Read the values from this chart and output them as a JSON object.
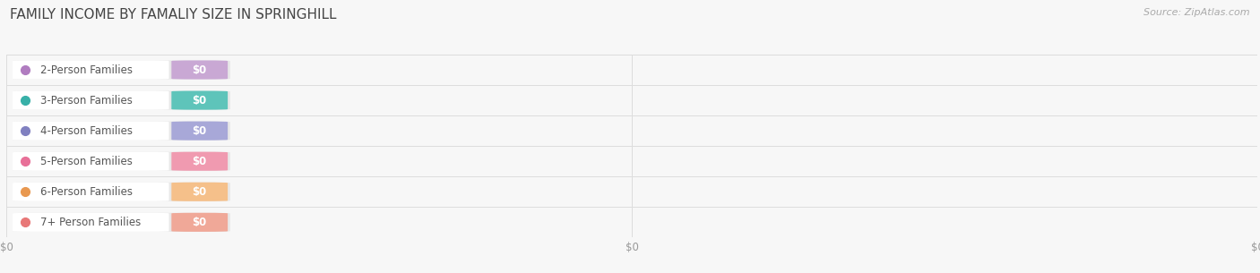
{
  "title": "FAMILY INCOME BY FAMALIY SIZE IN SPRINGHILL",
  "source": "Source: ZipAtlas.com",
  "categories": [
    "2-Person Families",
    "3-Person Families",
    "4-Person Families",
    "5-Person Families",
    "6-Person Families",
    "7+ Person Families"
  ],
  "values": [
    0,
    0,
    0,
    0,
    0,
    0
  ],
  "bar_colors": [
    "#c9a8d4",
    "#5ec4ba",
    "#a8a8d8",
    "#f09ab0",
    "#f5c08a",
    "#f0a898"
  ],
  "dot_colors": [
    "#b07cc0",
    "#38b0a8",
    "#8080c0",
    "#e87098",
    "#e89850",
    "#e87878"
  ],
  "bg_color": "#f7f7f7",
  "bar_bg_color": "#e8e8e8",
  "row_sep_color": "#dddddd",
  "tick_label_color": "#999999",
  "title_color": "#444444",
  "source_color": "#aaaaaa",
  "label_text_color": "#555555",
  "title_fontsize": 11,
  "label_fontsize": 8.5,
  "value_fontsize": 8.5,
  "tick_fontsize": 8.5,
  "source_fontsize": 8
}
